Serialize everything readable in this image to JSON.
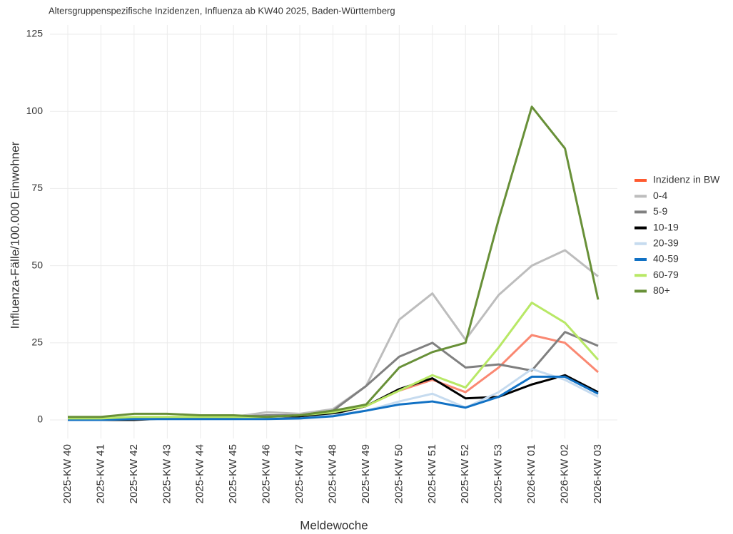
{
  "chart_data": {
    "type": "line",
    "title": "Altersgruppenspezifische Inzidenzen, Influenza ab KW40 2025, Baden-Württemberg",
    "x_label": "Meldewoche",
    "y_label": "Influenza-Fälle/100.000 Einwohner",
    "categories": [
      "2025-KW 40",
      "2025-KW 41",
      "2025-KW 42",
      "2025-KW 43",
      "2025-KW 44",
      "2025-KW 45",
      "2025-KW 46",
      "2025-KW 47",
      "2025-KW 48",
      "2025-KW 49",
      "2025-KW 50",
      "2025-KW 51",
      "2025-KW 52",
      "2025-KW 53",
      "2026-KW 01",
      "2026-KW 02",
      "2026-KW 03"
    ],
    "ylim": [
      -6,
      128
    ],
    "yticks": [
      0,
      25,
      50,
      75,
      100,
      125
    ],
    "grid": true,
    "legend": "right",
    "series": [
      {
        "name": "Inzidenz in BW",
        "color": "#fa8872",
        "legend_color": "#ff5a30",
        "values": [
          0.3,
          0.5,
          0.8,
          0.8,
          0.8,
          0.8,
          0.8,
          1,
          2,
          4.5,
          9.5,
          13,
          9,
          17,
          27.5,
          25,
          15.5
        ]
      },
      {
        "name": "0-4",
        "color": "#bdbdbd",
        "values": [
          0.5,
          0.5,
          0.5,
          1,
          1,
          1,
          2.5,
          2,
          3.5,
          11,
          32.5,
          41,
          26,
          40.5,
          50,
          55,
          46.5
        ]
      },
      {
        "name": "5-9",
        "color": "#808080",
        "values": [
          0.5,
          0.5,
          0.5,
          0.5,
          1,
          1,
          1.5,
          1.5,
          3,
          11,
          20.5,
          25,
          17,
          18,
          16,
          28.5,
          24
        ]
      },
      {
        "name": "10-19",
        "color": "#000000",
        "values": [
          0,
          0,
          0,
          0.5,
          0.5,
          0.5,
          0.5,
          1,
          2,
          4.5,
          10,
          13.5,
          7,
          7.5,
          11.5,
          14.5,
          9
        ]
      },
      {
        "name": "20-39",
        "color": "#c6dbef",
        "values": [
          0.3,
          0.3,
          0.3,
          0.3,
          0.3,
          0.3,
          0.5,
          0.5,
          1.5,
          3,
          6,
          8.5,
          4,
          9,
          16.5,
          13,
          7.5
        ]
      },
      {
        "name": "40-59",
        "color": "#1171c4",
        "values": [
          0,
          0,
          0.3,
          0.3,
          0.3,
          0.3,
          0.3,
          0.5,
          1.2,
          3,
          5,
          6,
          4,
          7.5,
          14,
          14,
          8.5
        ]
      },
      {
        "name": "60-79",
        "color": "#b8e866",
        "values": [
          0.5,
          0.5,
          1,
          1,
          1,
          1,
          1,
          1.5,
          2.5,
          4.5,
          9.5,
          14.5,
          10.5,
          23.5,
          38,
          31.5,
          19.5
        ]
      },
      {
        "name": "80+",
        "color": "#689038",
        "values": [
          1,
          1,
          2,
          2,
          1.5,
          1.5,
          1,
          1.5,
          3,
          5,
          17,
          22,
          25,
          65,
          101.5,
          88,
          39
        ]
      }
    ]
  }
}
